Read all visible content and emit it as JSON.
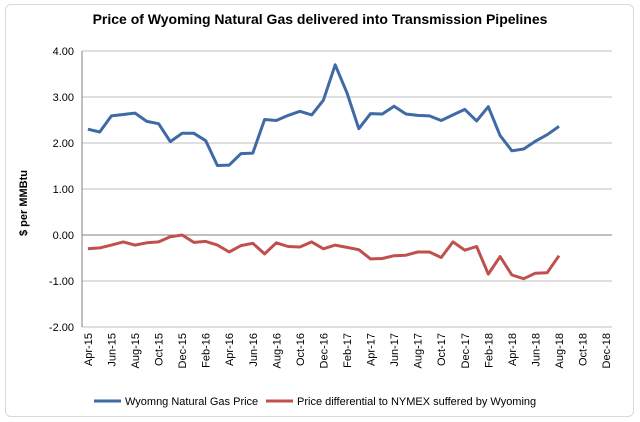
{
  "chart_data": {
    "type": "line",
    "title": "Price of Wyoming Natural Gas delivered into Transmission Pipelines",
    "ylabel": "$ per MMBtu",
    "xlabel": "",
    "ylim": [
      -2.0,
      4.0
    ],
    "yticks": [
      "4.00",
      "3.00",
      "2.00",
      "1.00",
      "0.00",
      "-1.00",
      "-2.00"
    ],
    "x_tick_labels": [
      "Apr-15",
      "Jun-15",
      "Aug-15",
      "Oct-15",
      "Dec-15",
      "Feb-16",
      "Apr-16",
      "Jun-16",
      "Aug-16",
      "Oct-16",
      "Dec-16",
      "Feb-17",
      "Apr-17",
      "Jun-17",
      "Aug-17",
      "Oct-17",
      "Dec-17",
      "Feb-18",
      "Apr-18",
      "Jun-18",
      "Aug-18",
      "Oct-18",
      "Dec-18"
    ],
    "grid": true,
    "legend_position": "bottom",
    "colors": {
      "series1": "#3f6aa5",
      "series2": "#c0504d"
    },
    "series": [
      {
        "name": "Wyomng Natural Gas Price",
        "values": [
          2.3,
          2.24,
          2.59,
          2.62,
          2.65,
          2.47,
          2.42,
          2.03,
          2.21,
          2.21,
          2.05,
          1.51,
          1.52,
          1.77,
          1.78,
          2.51,
          2.49,
          2.6,
          2.69,
          2.61,
          2.93,
          3.7,
          3.09,
          2.31,
          2.64,
          2.63,
          2.8,
          2.63,
          2.6,
          2.59,
          2.49,
          2.61,
          2.73,
          2.48,
          2.79,
          2.16,
          1.83,
          1.87,
          2.04,
          2.18,
          2.36
        ]
      },
      {
        "name": "Price differential to NYMEX suffered by Wyoming",
        "values": [
          -0.3,
          -0.28,
          -0.22,
          -0.15,
          -0.22,
          -0.17,
          -0.15,
          -0.04,
          0.0,
          -0.16,
          -0.14,
          -0.22,
          -0.37,
          -0.23,
          -0.18,
          -0.41,
          -0.17,
          -0.25,
          -0.26,
          -0.15,
          -0.3,
          -0.22,
          -0.27,
          -0.32,
          -0.52,
          -0.51,
          -0.45,
          -0.44,
          -0.37,
          -0.37,
          -0.49,
          -0.15,
          -0.33,
          -0.25,
          -0.85,
          -0.47,
          -0.87,
          -0.95,
          -0.83,
          -0.82,
          -0.45
        ]
      }
    ]
  }
}
